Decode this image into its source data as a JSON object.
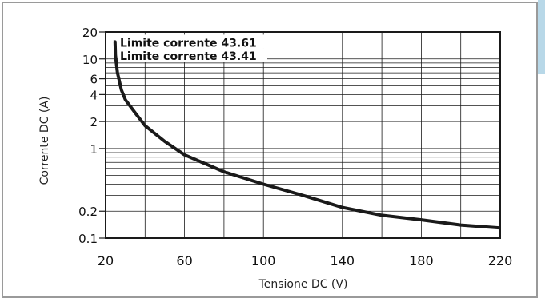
{
  "chart_data": {
    "type": "line",
    "x_scale": "linear",
    "y_scale": "log",
    "xlabel": "Tensione DC (V)",
    "ylabel": "Corrente DC (A)",
    "xlim": [
      20,
      220
    ],
    "ylim": [
      0.1,
      20
    ],
    "x_ticks": [
      20,
      60,
      100,
      140,
      180,
      220
    ],
    "y_ticks": [
      0.1,
      0.2,
      1,
      2,
      4,
      6,
      10,
      20
    ],
    "x_tick_labels": [
      "20",
      "60",
      "100",
      "140",
      "180",
      "220"
    ],
    "y_tick_labels": [
      "0.1",
      "0.2",
      "1",
      "2",
      "4",
      "6",
      "10",
      "20"
    ],
    "grid": true,
    "series": [
      {
        "x": [
          24,
          24.8,
          25,
          26,
          28,
          30,
          35,
          40,
          50,
          60,
          80,
          100,
          120,
          140,
          160,
          180,
          200,
          220
        ],
        "y": [
          15.5,
          15.5,
          11,
          7,
          4.5,
          3.5,
          2.5,
          1.8,
          1.2,
          0.85,
          0.55,
          0.4,
          0.3,
          0.22,
          0.18,
          0.16,
          0.14,
          0.13
        ]
      }
    ],
    "annotations": [
      {
        "text": "Limite corrente 43.61",
        "y": 15.5
      },
      {
        "text": "Limite corrente 43.41",
        "y": 11
      }
    ]
  },
  "colors": {
    "border": "#9a9a9a",
    "line": "#1a1a1a",
    "grid": "#1a1a1a",
    "accent": "#b8d8e8"
  }
}
